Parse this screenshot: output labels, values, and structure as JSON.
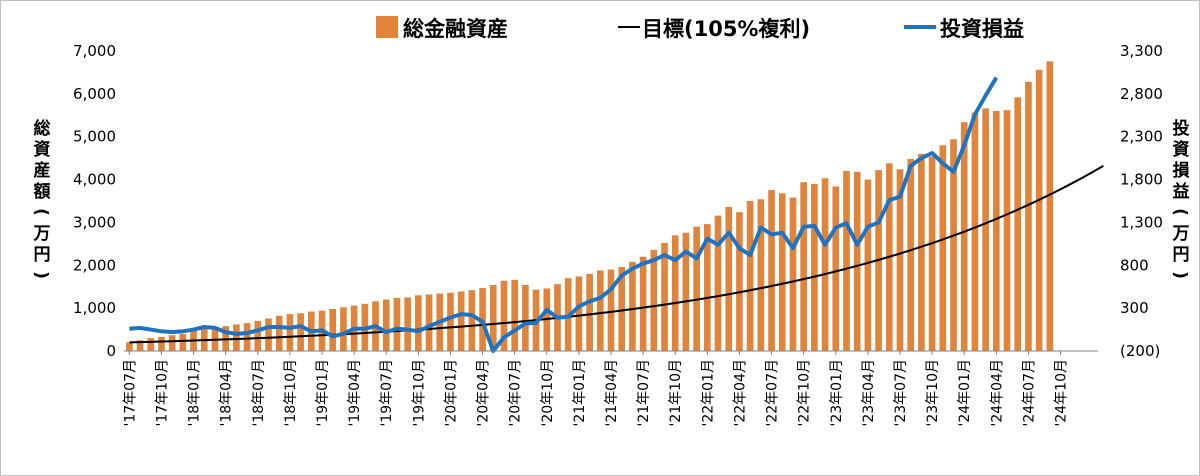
{
  "chart_data": {
    "type": "bar+line",
    "legend": {
      "placement": "top",
      "items": [
        {
          "label": "総金融資産",
          "kind": "bar",
          "color": "#E0843C"
        },
        {
          "label": "目標(105%複利)",
          "kind": "line",
          "color": "#000000"
        },
        {
          "label": "投資損益",
          "kind": "line",
          "color": "#1F73C1"
        }
      ]
    },
    "y_left": {
      "label_chars": [
        "総",
        "資",
        "産",
        "額",
        "(",
        "万",
        "円",
        ")"
      ],
      "min": 0,
      "max": 7000,
      "ticks": [
        0,
        1000,
        2000,
        3000,
        4000,
        5000,
        6000,
        7000
      ],
      "tick_labels": [
        "0",
        "1,000",
        "2,000",
        "3,000",
        "4,000",
        "5,000",
        "6,000",
        "7,000"
      ]
    },
    "y_right": {
      "label_chars": [
        "投",
        "資",
        "損",
        "益",
        "(",
        "万",
        "円",
        ")"
      ],
      "min": -200,
      "max": 3300,
      "ticks": [
        -200,
        300,
        800,
        1300,
        1800,
        2300,
        2800,
        3300
      ],
      "tick_labels": [
        "(200)",
        "300",
        "800",
        "1,300",
        "1,800",
        "2,300",
        "2,800",
        "3,300"
      ],
      "negative_color": "#FF0000"
    },
    "x_ticks": [
      "'17年07月",
      "'17年10月",
      "'18年01月",
      "'18年04月",
      "'18年07月",
      "'18年10月",
      "'19年01月",
      "'19年04月",
      "'19年07月",
      "'19年10月",
      "'20年01月",
      "'20年04月",
      "'20年07月",
      "'20年10月",
      "'21年01月",
      "'21年04月",
      "'21年07月",
      "'21年10月",
      "'22年01月",
      "'22年04月",
      "'22年07月",
      "'22年10月",
      "'23年01月",
      "'23年04月",
      "'23年07月",
      "'23年10月",
      "'24年01月",
      "'24年04月",
      "'24年07月",
      "'24年10月"
    ],
    "grid": false,
    "series": [
      {
        "name": "総金融資産",
        "type": "bar",
        "axis": "left",
        "start": "2017-07",
        "values": [
          200,
          250,
          300,
          330,
          370,
          400,
          480,
          530,
          560,
          580,
          620,
          650,
          700,
          760,
          820,
          860,
          880,
          920,
          940,
          980,
          1020,
          1060,
          1100,
          1160,
          1200,
          1240,
          1250,
          1300,
          1320,
          1340,
          1360,
          1390,
          1420,
          1470,
          1540,
          1640,
          1660,
          1540,
          1430,
          1460,
          1560,
          1700,
          1740,
          1800,
          1880,
          1900,
          1960,
          2080,
          2200,
          2360,
          2520,
          2700,
          2760,
          2900,
          2960,
          3160,
          3360,
          3240,
          3500,
          3540,
          3760,
          3680,
          3580,
          3940,
          3900,
          4030,
          3840,
          4200,
          4180,
          4000,
          4220,
          4380,
          4240,
          4480,
          4600,
          4540,
          4800,
          4940,
          5340,
          5560,
          5660,
          5600,
          5620,
          5920,
          6280,
          6560,
          6760
        ]
      },
      {
        "name": "投資損益",
        "type": "line",
        "axis": "right",
        "start": "2017-07",
        "values": [
          60,
          70,
          50,
          30,
          20,
          30,
          50,
          80,
          70,
          20,
          0,
          10,
          40,
          80,
          80,
          70,
          90,
          30,
          40,
          -30,
          0,
          60,
          60,
          90,
          20,
          60,
          50,
          30,
          90,
          140,
          190,
          230,
          220,
          140,
          -200,
          -40,
          40,
          120,
          130,
          280,
          190,
          200,
          320,
          380,
          420,
          520,
          680,
          760,
          820,
          860,
          920,
          860,
          960,
          880,
          1110,
          1040,
          1180,
          1000,
          920,
          1240,
          1160,
          1180,
          1000,
          1250,
          1260,
          1040,
          1240,
          1290,
          1040,
          1250,
          1300,
          1560,
          1600,
          1960,
          2050,
          2110,
          1990,
          1890,
          2200,
          2560,
          2780,
          2990
        ]
      },
      {
        "name": "目標(105%複利)",
        "type": "line",
        "axis": "left",
        "start": "2017-07",
        "values": [
          200,
          4320
        ],
        "x": [
          "2017-07",
          "2025-02"
        ]
      }
    ]
  }
}
